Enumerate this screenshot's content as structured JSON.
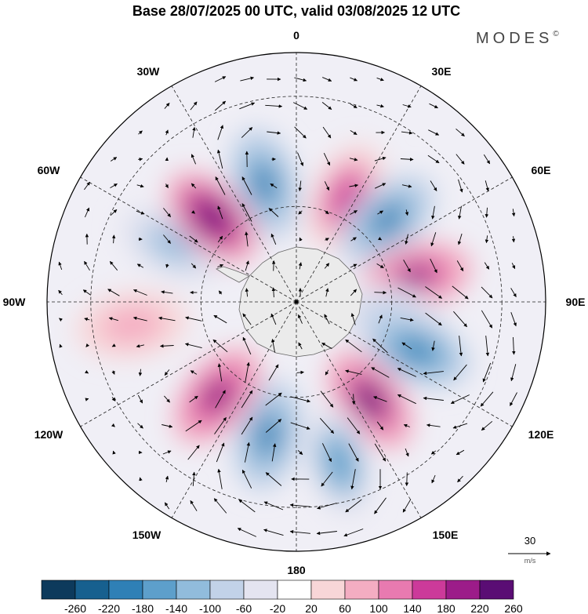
{
  "chart_data": {
    "type": "heatmap",
    "projection": "south-polar-stereographic",
    "title": "Base 28/07/2025 00 UTC, valid 03/08/2025 12 UTC",
    "brand": "MODES",
    "brand_mark": "©",
    "longitude_labels": [
      "0",
      "30E",
      "60E",
      "90E",
      "120E",
      "150E",
      "180",
      "150W",
      "120W",
      "90W",
      "60W",
      "30W"
    ],
    "colorbar": {
      "ticks": [
        "-260",
        "-220",
        "-180",
        "-140",
        "-100",
        "-60",
        "-20",
        "20",
        "60",
        "100",
        "140",
        "180",
        "220",
        "260"
      ],
      "colors": [
        "#0d3a5c",
        "#17608f",
        "#2f80b6",
        "#5d9fcb",
        "#91bcdc",
        "#c2d2e8",
        "#e4e4f0",
        "#ffffff",
        "#f8d6d8",
        "#f4adc2",
        "#e87ab0",
        "#cc3a9a",
        "#9c1c89",
        "#5a0d74"
      ]
    },
    "reference_vector": {
      "value": "30",
      "units": "m/s"
    },
    "anomaly_centers": [
      {
        "lon_deg": -15,
        "lat_deg": -52,
        "value": -200
      },
      {
        "lon_deg": 25,
        "lat_deg": -54,
        "value": 160
      },
      {
        "lon_deg": 48,
        "lat_deg": -52,
        "value": -200
      },
      {
        "lon_deg": 78,
        "lat_deg": -52,
        "value": 180
      },
      {
        "lon_deg": 100,
        "lat_deg": -60,
        "value": -100
      },
      {
        "lon_deg": 112,
        "lat_deg": -50,
        "value": -220
      },
      {
        "lon_deg": 143,
        "lat_deg": -52,
        "value": 240
      },
      {
        "lon_deg": 165,
        "lat_deg": -40,
        "value": -160
      },
      {
        "lon_deg": -168,
        "lat_deg": -48,
        "value": -200
      },
      {
        "lon_deg": -140,
        "lat_deg": -52,
        "value": 220
      },
      {
        "lon_deg": -98,
        "lat_deg": -40,
        "value": 80
      },
      {
        "lon_deg": -65,
        "lat_deg": -48,
        "value": -140
      },
      {
        "lon_deg": -45,
        "lat_deg": -53,
        "value": 260
      }
    ],
    "vectors": "wind field, approximate"
  }
}
